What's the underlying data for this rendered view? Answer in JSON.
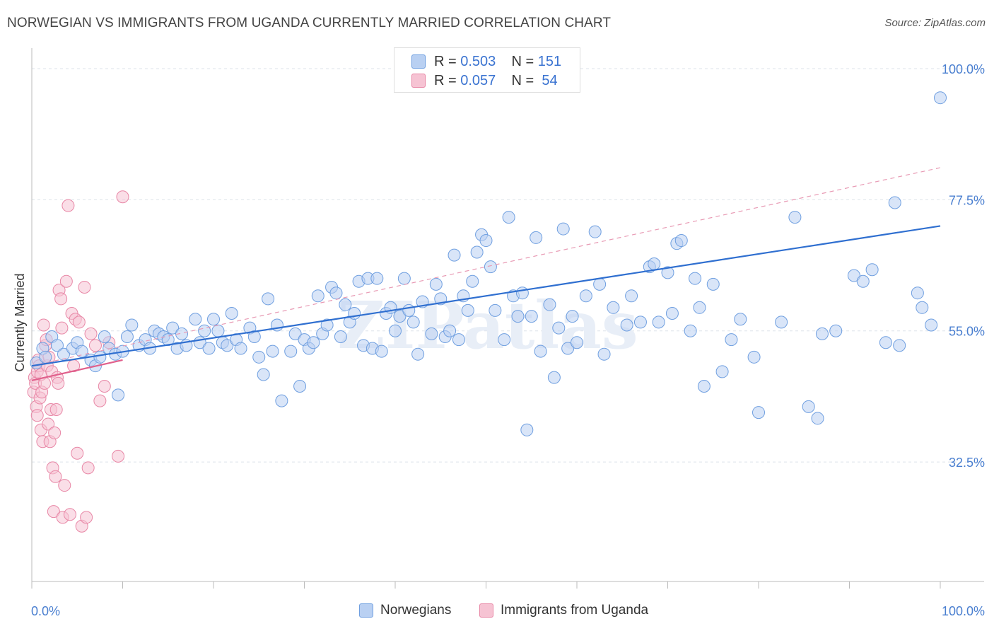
{
  "title": "NORWEGIAN VS IMMIGRANTS FROM UGANDA CURRENTLY MARRIED CORRELATION CHART",
  "source": "Source: ZipAtlas.com",
  "watermark": "ZIPatlas",
  "legend": {
    "row1": {
      "r_label": "R =",
      "r_value": "0.503",
      "n_label": "N =",
      "n_value": "151"
    },
    "row2": {
      "r_label": "R =",
      "r_value": "0.057",
      "n_label": "N =",
      "n_value": "54"
    }
  },
  "bottom_legend": {
    "s1": "Norwegians",
    "s2": "Immigrants from Uganda"
  },
  "colors": {
    "blue": "#6f9fe0",
    "blue_fill": "#b9d0f2",
    "pink": "#e887a6",
    "pink_fill": "#f6c3d3",
    "blue_line": "#2f6fd0",
    "pink_line": "#e0608c",
    "axis_text": "#4a7fd0"
  },
  "chart_data": {
    "type": "scatter",
    "xlabel": "",
    "ylabel": "Currently Married",
    "xlim": [
      0,
      100
    ],
    "ylim": [
      12,
      100
    ],
    "x_tick_labels": [
      "0.0%",
      "100.0%"
    ],
    "y_ticks": [
      32.5,
      55.0,
      77.5,
      100.0
    ],
    "y_tick_labels": [
      "32.5%",
      "55.0%",
      "77.5%",
      "100.0%"
    ],
    "grid": true,
    "series": [
      {
        "name": "Norwegians",
        "color": "#6f9fe0",
        "trend": {
          "x": [
            0,
            100
          ],
          "y": [
            49.0,
            73.0
          ],
          "style": "solid"
        },
        "trend_ext": {
          "x": [
            0,
            100
          ],
          "y": [
            49.0,
            83.0
          ],
          "style": "dashed"
        },
        "points": [
          [
            0.5,
            49.5
          ],
          [
            1.2,
            52
          ],
          [
            1.5,
            50.5
          ],
          [
            2.2,
            54
          ],
          [
            2.8,
            52.5
          ],
          [
            3.5,
            51
          ],
          [
            4.5,
            52
          ],
          [
            5.0,
            53
          ],
          [
            5.5,
            51.5
          ],
          [
            6.5,
            50
          ],
          [
            7.0,
            49
          ],
          [
            7.5,
            50.5
          ],
          [
            8.0,
            54
          ],
          [
            8.5,
            52
          ],
          [
            9.2,
            51
          ],
          [
            9.5,
            44
          ],
          [
            10.0,
            51.5
          ],
          [
            10.5,
            54
          ],
          [
            11.0,
            56
          ],
          [
            11.8,
            52.5
          ],
          [
            12.5,
            53.5
          ],
          [
            13.0,
            52
          ],
          [
            13.5,
            55
          ],
          [
            14.0,
            54.5
          ],
          [
            14.5,
            54
          ],
          [
            15.0,
            53.5
          ],
          [
            15.5,
            55.5
          ],
          [
            16.0,
            52
          ],
          [
            16.5,
            54.5
          ],
          [
            17.0,
            52.5
          ],
          [
            18.0,
            57
          ],
          [
            18.5,
            53
          ],
          [
            19.0,
            55
          ],
          [
            19.5,
            52
          ],
          [
            20.0,
            57
          ],
          [
            20.5,
            55
          ],
          [
            21.0,
            53
          ],
          [
            21.5,
            52.5
          ],
          [
            22.0,
            58
          ],
          [
            22.5,
            53.5
          ],
          [
            23.0,
            52
          ],
          [
            24.0,
            55.5
          ],
          [
            24.5,
            54
          ],
          [
            25.0,
            50.5
          ],
          [
            25.5,
            47.5
          ],
          [
            26.0,
            60.5
          ],
          [
            26.5,
            51.5
          ],
          [
            27.0,
            56
          ],
          [
            27.5,
            43
          ],
          [
            28.5,
            51.5
          ],
          [
            29.0,
            54.5
          ],
          [
            29.5,
            45.5
          ],
          [
            30.0,
            53.5
          ],
          [
            30.5,
            52
          ],
          [
            31.0,
            53
          ],
          [
            31.5,
            61
          ],
          [
            32.0,
            54.5
          ],
          [
            32.5,
            56
          ],
          [
            33.0,
            62.5
          ],
          [
            33.5,
            61.5
          ],
          [
            34.0,
            54
          ],
          [
            34.5,
            59.5
          ],
          [
            35.0,
            56.5
          ],
          [
            35.5,
            58
          ],
          [
            36.0,
            63.5
          ],
          [
            36.5,
            52.5
          ],
          [
            37.0,
            64
          ],
          [
            37.5,
            52
          ],
          [
            38.0,
            64
          ],
          [
            38.5,
            51.5
          ],
          [
            39.0,
            58
          ],
          [
            39.5,
            59
          ],
          [
            40.0,
            55
          ],
          [
            40.5,
            57.5
          ],
          [
            41.0,
            64
          ],
          [
            41.5,
            58.5
          ],
          [
            42.0,
            56.5
          ],
          [
            42.5,
            51
          ],
          [
            43.0,
            60
          ],
          [
            44.0,
            54.5
          ],
          [
            44.5,
            63
          ],
          [
            45.0,
            60.5
          ],
          [
            45.5,
            54
          ],
          [
            46.0,
            55
          ],
          [
            46.5,
            68
          ],
          [
            47.0,
            53.5
          ],
          [
            47.5,
            61
          ],
          [
            48.0,
            58.5
          ],
          [
            48.5,
            63.5
          ],
          [
            49.0,
            68.5
          ],
          [
            49.5,
            71.5
          ],
          [
            50.0,
            70.5
          ],
          [
            50.5,
            66
          ],
          [
            51.0,
            58.5
          ],
          [
            52.0,
            53.5
          ],
          [
            52.5,
            74.5
          ],
          [
            53.0,
            61
          ],
          [
            53.5,
            57.5
          ],
          [
            54.0,
            61.5
          ],
          [
            54.5,
            38
          ],
          [
            55.0,
            57.5
          ],
          [
            55.5,
            71
          ],
          [
            56.0,
            51.5
          ],
          [
            57.0,
            59.5
          ],
          [
            57.5,
            47
          ],
          [
            58.0,
            55.5
          ],
          [
            58.5,
            72.5
          ],
          [
            59.0,
            52
          ],
          [
            59.5,
            57.5
          ],
          [
            60.0,
            53
          ],
          [
            61.0,
            61
          ],
          [
            62.0,
            72
          ],
          [
            62.5,
            63
          ],
          [
            63.0,
            51
          ],
          [
            64.0,
            59
          ],
          [
            65.5,
            56
          ],
          [
            66.0,
            61
          ],
          [
            67.0,
            56.5
          ],
          [
            68.0,
            66
          ],
          [
            68.5,
            66.5
          ],
          [
            69.0,
            56.5
          ],
          [
            70.0,
            65
          ],
          [
            70.5,
            58
          ],
          [
            71.0,
            70
          ],
          [
            71.5,
            70.5
          ],
          [
            72.5,
            55
          ],
          [
            73.0,
            64
          ],
          [
            73.5,
            59
          ],
          [
            74.0,
            45.5
          ],
          [
            75.0,
            63
          ],
          [
            76.0,
            48
          ],
          [
            77.0,
            53.5
          ],
          [
            78.0,
            57
          ],
          [
            79.5,
            50.5
          ],
          [
            80.0,
            41
          ],
          [
            82.5,
            56.5
          ],
          [
            84.0,
            74.5
          ],
          [
            85.5,
            42
          ],
          [
            86.5,
            40
          ],
          [
            87.0,
            54.5
          ],
          [
            88.5,
            55
          ],
          [
            90.5,
            64.5
          ],
          [
            91.5,
            63.5
          ],
          [
            92.5,
            65.5
          ],
          [
            94.0,
            53
          ],
          [
            95.0,
            77
          ],
          [
            95.5,
            52.5
          ],
          [
            97.5,
            61.5
          ],
          [
            98.0,
            59
          ],
          [
            99.0,
            56
          ],
          [
            100.0,
            95
          ]
        ]
      },
      {
        "name": "Immigrants from Uganda",
        "color": "#e887a6",
        "trend": {
          "x": [
            0,
            10
          ],
          "y": [
            46.5,
            50.0
          ],
          "style": "solid"
        },
        "points": [
          [
            0.2,
            44.5
          ],
          [
            0.3,
            47
          ],
          [
            0.4,
            46
          ],
          [
            0.5,
            42
          ],
          [
            0.6,
            48
          ],
          [
            0.6,
            40.5
          ],
          [
            0.7,
            50
          ],
          [
            0.8,
            49
          ],
          [
            0.9,
            43.5
          ],
          [
            1.0,
            47.5
          ],
          [
            1.0,
            38
          ],
          [
            1.1,
            44.5
          ],
          [
            1.2,
            36
          ],
          [
            1.3,
            56
          ],
          [
            1.4,
            46
          ],
          [
            1.5,
            52.5
          ],
          [
            1.6,
            53.5
          ],
          [
            1.7,
            49
          ],
          [
            1.8,
            39
          ],
          [
            1.9,
            50.5
          ],
          [
            2.0,
            36
          ],
          [
            2.1,
            41.5
          ],
          [
            2.2,
            48
          ],
          [
            2.3,
            31.5
          ],
          [
            2.4,
            24
          ],
          [
            2.5,
            37.5
          ],
          [
            2.6,
            30
          ],
          [
            2.7,
            41.5
          ],
          [
            2.8,
            47
          ],
          [
            2.9,
            46
          ],
          [
            3.0,
            62
          ],
          [
            3.2,
            60.5
          ],
          [
            3.3,
            55.5
          ],
          [
            3.4,
            23
          ],
          [
            3.6,
            28.5
          ],
          [
            3.8,
            63.5
          ],
          [
            4.0,
            76.5
          ],
          [
            4.2,
            23.5
          ],
          [
            4.4,
            58
          ],
          [
            4.6,
            49
          ],
          [
            4.8,
            57
          ],
          [
            5.0,
            34
          ],
          [
            5.2,
            56.5
          ],
          [
            5.5,
            21.5
          ],
          [
            5.8,
            62.5
          ],
          [
            6.0,
            23
          ],
          [
            6.2,
            31.5
          ],
          [
            6.5,
            54.5
          ],
          [
            7.0,
            52.5
          ],
          [
            7.5,
            43
          ],
          [
            8.0,
            45.5
          ],
          [
            8.5,
            53
          ],
          [
            9.5,
            33.5
          ],
          [
            10.0,
            78
          ]
        ]
      }
    ]
  }
}
